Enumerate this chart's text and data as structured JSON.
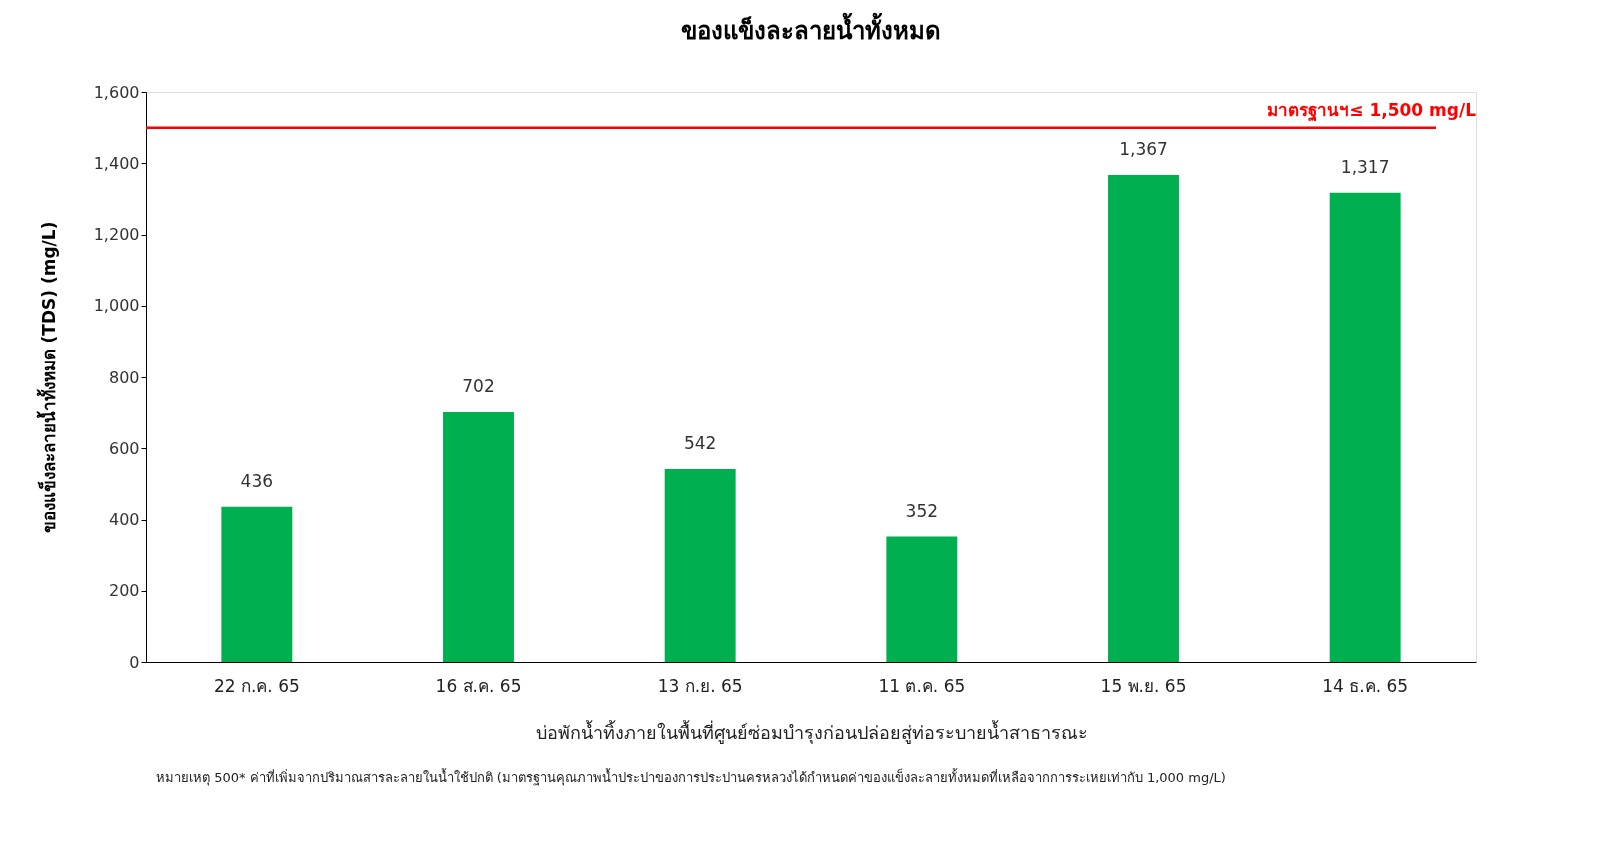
{
  "chart_data": {
    "type": "bar",
    "title": "ของแข็งละลายน้ำทั้งหมด",
    "xlabel": "บ่อพักน้ำทิ้งภายในพื้นที่ศูนย์ซ่อมบำรุงก่อนปล่อยสู่ท่อระบายน้ำสาธารณะ",
    "ylabel": "ของแข็งละลายน้ำทั้งหมด (TDS) (mg/L)",
    "categories": [
      "22 ก.ค. 65",
      "16 ส.ค. 65",
      "13 ก.ย. 65",
      "11 ต.ค. 65",
      "15 พ.ย. 65",
      "14 ธ.ค. 65"
    ],
    "values": [
      436,
      702,
      542,
      352,
      1367,
      1317
    ],
    "color": "#00b050",
    "ylim": [
      0,
      1600
    ],
    "yticks": [
      0,
      {
        "value": 200,
        "label": "200"
      },
      {
        "value": 400,
        "label": "400"
      },
      {
        "value": 600,
        "label": "600"
      },
      {
        "value": 800,
        "label": "800"
      },
      {
        "value": 1000,
        "label": "1,000"
      },
      {
        "value": 1200,
        "label": "1,200"
      },
      {
        "value": 1400,
        "label": "1,400"
      },
      {
        "value": 1600,
        "label": "1,600"
      }
    ],
    "value_labels": [
      "436",
      "702",
      "542",
      "352",
      "1,367",
      "1,317"
    ],
    "ref_lines": [
      {
        "axis": "y",
        "value": 1500,
        "label": "มาตรฐานฯ≤ 1,500 mg/L",
        "color": "#ff0000"
      }
    ],
    "annotations": [
      "หมายเหตุ 500* ค่าที่เพิ่มจากปริมาณสารละลายในน้ำใช้ปกติ (มาตรฐานคุณภาพน้ำประปาของการประปานครหลวงได้กำหนดค่าของแข็งละลายทั้งหมดที่เหลือจากการระเหยเท่ากับ 1,000 mg/L)"
    ],
    "grid": false
  }
}
